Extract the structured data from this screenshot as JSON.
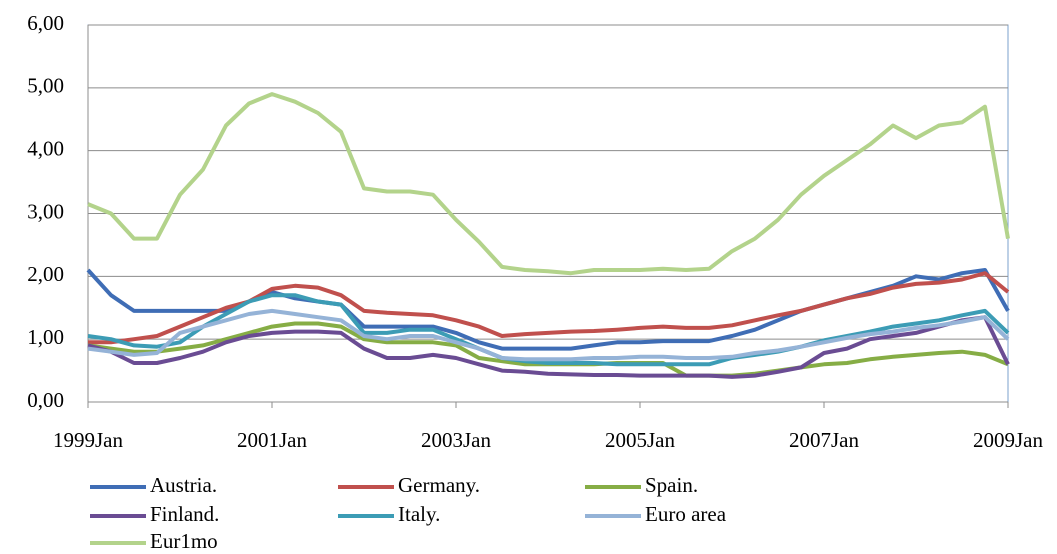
{
  "chart_data": {
    "type": "line",
    "x": [
      1999,
      1999.25,
      1999.5,
      1999.75,
      2000,
      2000.25,
      2000.5,
      2000.75,
      2001,
      2001.25,
      2001.5,
      2001.75,
      2002,
      2002.25,
      2002.5,
      2002.75,
      2003,
      2003.25,
      2003.5,
      2003.75,
      2004,
      2004.25,
      2004.5,
      2004.75,
      2005,
      2005.25,
      2005.5,
      2005.75,
      2006,
      2006.25,
      2006.5,
      2006.75,
      2007,
      2007.25,
      2007.5,
      2007.75,
      2008,
      2008.25,
      2008.5,
      2008.75,
      2009
    ],
    "xlim": [
      1999,
      2009
    ],
    "xticks": [
      {
        "value": 1999,
        "label": "1999Jan"
      },
      {
        "value": 2001,
        "label": "2001Jan"
      },
      {
        "value": 2003,
        "label": "2003Jan"
      },
      {
        "value": 2005,
        "label": "2005Jan"
      },
      {
        "value": 2007,
        "label": "2007Jan"
      },
      {
        "value": 2009,
        "label": "2009Jan"
      }
    ],
    "ylim": [
      0,
      6
    ],
    "yticks": [
      {
        "value": 0,
        "label": "0,00"
      },
      {
        "value": 1,
        "label": "1,00"
      },
      {
        "value": 2,
        "label": "2,00"
      },
      {
        "value": 3,
        "label": "3,00"
      },
      {
        "value": 4,
        "label": "4,00"
      },
      {
        "value": 5,
        "label": "5,00"
      },
      {
        "value": 6,
        "label": "6,00"
      }
    ],
    "grid": true,
    "legend": "bottom",
    "series": [
      {
        "name": "Austria.",
        "color": "#3f6db5",
        "values": [
          2.1,
          1.7,
          1.45,
          1.45,
          1.45,
          1.45,
          1.45,
          1.6,
          1.75,
          1.65,
          1.6,
          1.55,
          1.2,
          1.2,
          1.2,
          1.2,
          1.1,
          0.95,
          0.85,
          0.85,
          0.85,
          0.85,
          0.9,
          0.95,
          0.95,
          0.97,
          0.97,
          0.97,
          1.05,
          1.15,
          1.3,
          1.45,
          1.55,
          1.65,
          1.75,
          1.85,
          2.0,
          1.95,
          2.05,
          2.1,
          1.45
        ]
      },
      {
        "name": "Germany.",
        "color": "#c0504d",
        "values": [
          0.95,
          0.95,
          1.0,
          1.05,
          1.2,
          1.35,
          1.5,
          1.6,
          1.8,
          1.85,
          1.82,
          1.7,
          1.45,
          1.42,
          1.4,
          1.38,
          1.3,
          1.2,
          1.05,
          1.08,
          1.1,
          1.12,
          1.13,
          1.15,
          1.18,
          1.2,
          1.18,
          1.18,
          1.22,
          1.3,
          1.38,
          1.45,
          1.55,
          1.65,
          1.72,
          1.82,
          1.88,
          1.9,
          1.95,
          2.05,
          1.75
        ]
      },
      {
        "name": "Spain.",
        "color": "#86ad45",
        "values": [
          0.9,
          0.85,
          0.8,
          0.8,
          0.85,
          0.9,
          1.0,
          1.1,
          1.2,
          1.25,
          1.25,
          1.2,
          1.0,
          0.95,
          0.95,
          0.95,
          0.9,
          0.7,
          0.65,
          0.6,
          0.6,
          0.6,
          0.6,
          0.62,
          0.62,
          0.62,
          0.42,
          0.42,
          0.42,
          0.45,
          0.5,
          0.55,
          0.6,
          0.62,
          0.68,
          0.72,
          0.75,
          0.78,
          0.8,
          0.75,
          0.6
        ]
      },
      {
        "name": "Finland.",
        "color": "#6a4c93",
        "values": [
          0.9,
          0.8,
          0.62,
          0.62,
          0.7,
          0.8,
          0.95,
          1.05,
          1.1,
          1.12,
          1.12,
          1.1,
          0.85,
          0.7,
          0.7,
          0.75,
          0.7,
          0.6,
          0.5,
          0.48,
          0.45,
          0.44,
          0.43,
          0.43,
          0.42,
          0.42,
          0.42,
          0.42,
          0.4,
          0.42,
          0.48,
          0.55,
          0.78,
          0.85,
          1.0,
          1.05,
          1.1,
          1.2,
          1.3,
          1.35,
          0.6
        ]
      },
      {
        "name": "Italy.",
        "color": "#3c9cb5",
        "values": [
          1.05,
          1.0,
          0.9,
          0.88,
          0.95,
          1.2,
          1.4,
          1.6,
          1.7,
          1.7,
          1.6,
          1.55,
          1.1,
          1.1,
          1.15,
          1.15,
          1.0,
          0.85,
          0.7,
          0.65,
          0.62,
          0.62,
          0.62,
          0.6,
          0.6,
          0.6,
          0.6,
          0.6,
          0.7,
          0.75,
          0.8,
          0.88,
          0.98,
          1.05,
          1.12,
          1.2,
          1.25,
          1.3,
          1.38,
          1.45,
          1.1
        ]
      },
      {
        "name": "Euro area",
        "color": "#95b3d7",
        "values": [
          0.85,
          0.8,
          0.75,
          0.78,
          1.1,
          1.2,
          1.3,
          1.4,
          1.45,
          1.4,
          1.35,
          1.3,
          1.05,
          1.0,
          1.05,
          1.05,
          0.95,
          0.85,
          0.7,
          0.68,
          0.68,
          0.68,
          0.7,
          0.7,
          0.72,
          0.72,
          0.7,
          0.7,
          0.72,
          0.78,
          0.82,
          0.88,
          0.95,
          1.02,
          1.08,
          1.12,
          1.18,
          1.22,
          1.28,
          1.35,
          1.0
        ]
      },
      {
        "name": "Eur1mo",
        "color": "#b3d38b",
        "values": [
          3.15,
          3.0,
          2.6,
          2.6,
          3.3,
          3.7,
          4.4,
          4.75,
          4.9,
          4.78,
          4.6,
          4.3,
          3.4,
          3.35,
          3.35,
          3.3,
          2.9,
          2.55,
          2.15,
          2.1,
          2.08,
          2.05,
          2.1,
          2.1,
          2.1,
          2.12,
          2.1,
          2.12,
          2.4,
          2.6,
          2.9,
          3.3,
          3.6,
          3.85,
          4.1,
          4.4,
          4.2,
          4.4,
          4.45,
          4.7,
          2.6
        ]
      }
    ]
  }
}
